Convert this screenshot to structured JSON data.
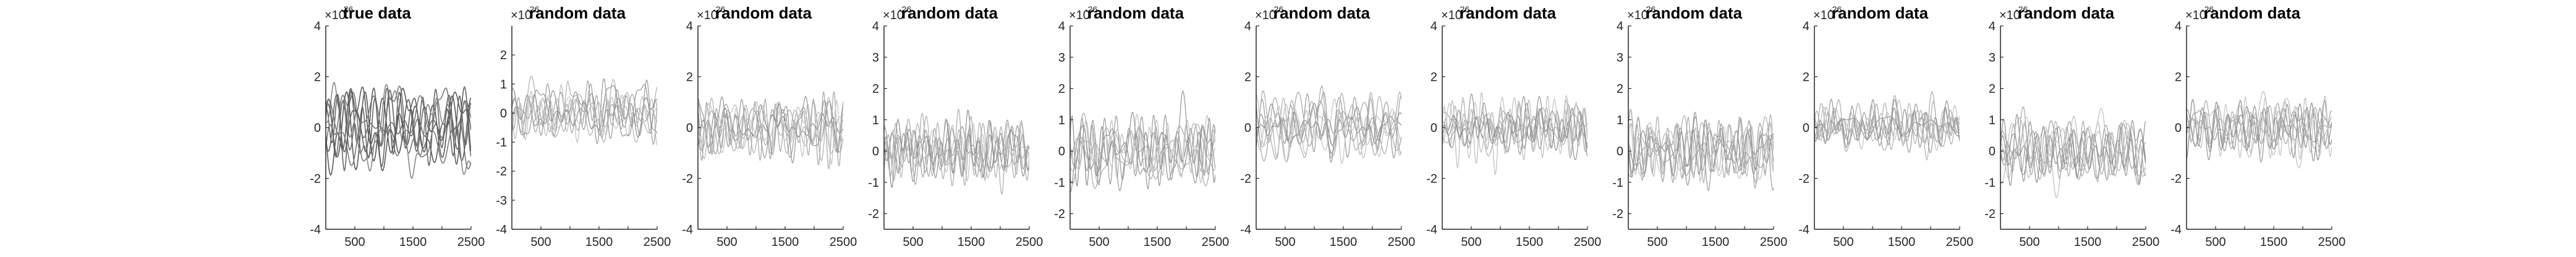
{
  "figure": {
    "panel_count": 11
  },
  "chart_data": [
    {
      "type": "line",
      "title": "true data",
      "exponent_label": "×10",
      "exponent_power": "-26",
      "xlim": [
        0,
        2500
      ],
      "x_ticks": [
        500,
        1000,
        1500,
        2000,
        2500
      ],
      "x_tick_labels": [
        "500",
        "1500",
        "2500"
      ],
      "ylim": [
        -4,
        4
      ],
      "y_ticks": [
        -4,
        -2,
        0,
        2,
        4
      ],
      "y_tick_labels": [
        "-4",
        "-2",
        "0",
        "2",
        "4"
      ],
      "series_count": 8,
      "amplitude": 1.3,
      "series_colors": [
        "#666666",
        "#777777",
        "#555555",
        "#888888",
        "#6e6e6e",
        "#5a5a5a",
        "#7a7a7a",
        "#626262"
      ]
    },
    {
      "type": "line",
      "title": "random data",
      "exponent_label": "×10",
      "exponent_power": "-26",
      "xlim": [
        0,
        2500
      ],
      "x_ticks": [
        500,
        1000,
        1500,
        2000,
        2500
      ],
      "x_tick_labels": [
        "500",
        "1500",
        "2500"
      ],
      "ylim": [
        -4,
        3
      ],
      "y_ticks": [
        -4,
        -3,
        -2,
        -1,
        0,
        1,
        2
      ],
      "y_tick_labels": [
        "-4",
        "-3",
        "-2",
        "-1",
        "0",
        "1",
        "2"
      ],
      "series_count": 8,
      "amplitude": 0.9,
      "series_colors": [
        "#b0b0b0",
        "#a5a5a5",
        "#9a9a9a",
        "#bdbdbd",
        "#8c8c8c",
        "#aaaaaa",
        "#c2c2c2",
        "#959595"
      ]
    },
    {
      "type": "line",
      "title": "random data",
      "exponent_label": "×10",
      "exponent_power": "-26",
      "xlim": [
        0,
        2500
      ],
      "x_ticks": [
        500,
        1000,
        1500,
        2000,
        2500
      ],
      "x_tick_labels": [
        "500",
        "1500",
        "2500"
      ],
      "ylim": [
        -4,
        4
      ],
      "y_ticks": [
        -4,
        -2,
        0,
        2,
        4
      ],
      "y_tick_labels": [
        "-4",
        "-2",
        "0",
        "2",
        "4"
      ],
      "series_count": 8,
      "amplitude": 1.0,
      "series_colors": [
        "#b0b0b0",
        "#a5a5a5",
        "#9a9a9a",
        "#bdbdbd",
        "#8c8c8c",
        "#aaaaaa",
        "#c2c2c2",
        "#959595"
      ]
    },
    {
      "type": "line",
      "title": "random data",
      "exponent_label": "×10",
      "exponent_power": "-26",
      "xlim": [
        0,
        2500
      ],
      "x_ticks": [
        500,
        1000,
        1500,
        2000,
        2500
      ],
      "x_tick_labels": [
        "500",
        "1500",
        "2500"
      ],
      "ylim": [
        -2.5,
        4
      ],
      "y_ticks": [
        -2,
        -1,
        0,
        1,
        2,
        3,
        4
      ],
      "y_tick_labels": [
        "-2",
        "-1",
        "0",
        "1",
        "2",
        "3",
        "4"
      ],
      "series_count": 8,
      "amplitude": 0.9,
      "series_colors": [
        "#b0b0b0",
        "#a5a5a5",
        "#9a9a9a",
        "#bdbdbd",
        "#8c8c8c",
        "#aaaaaa",
        "#c2c2c2",
        "#959595"
      ]
    },
    {
      "type": "line",
      "title": "random data",
      "exponent_label": "×10",
      "exponent_power": "-26",
      "xlim": [
        0,
        2500
      ],
      "x_ticks": [
        500,
        1000,
        1500,
        2000,
        2500
      ],
      "x_tick_labels": [
        "500",
        "1500",
        "2500"
      ],
      "ylim": [
        -2.5,
        4
      ],
      "y_ticks": [
        -2,
        -1,
        0,
        1,
        2,
        3,
        4
      ],
      "y_tick_labels": [
        "-2",
        "-1",
        "0",
        "1",
        "2",
        "3",
        "4"
      ],
      "series_count": 8,
      "amplitude": 0.9,
      "series_colors": [
        "#b0b0b0",
        "#a5a5a5",
        "#9a9a9a",
        "#bdbdbd",
        "#8c8c8c",
        "#aaaaaa",
        "#c2c2c2",
        "#959595"
      ]
    },
    {
      "type": "line",
      "title": "random data",
      "exponent_label": "×10",
      "exponent_power": "-26",
      "xlim": [
        0,
        2500
      ],
      "x_ticks": [
        500,
        1000,
        1500,
        2000,
        2500
      ],
      "x_tick_labels": [
        "500",
        "1500",
        "2500"
      ],
      "ylim": [
        -4,
        4
      ],
      "y_ticks": [
        -4,
        -2,
        0,
        2,
        4
      ],
      "y_tick_labels": [
        "-4",
        "-2",
        "0",
        "2",
        "4"
      ],
      "series_count": 8,
      "amplitude": 1.0,
      "series_colors": [
        "#b0b0b0",
        "#a5a5a5",
        "#9a9a9a",
        "#bdbdbd",
        "#8c8c8c",
        "#aaaaaa",
        "#c2c2c2",
        "#959595"
      ]
    },
    {
      "type": "line",
      "title": "random data",
      "exponent_label": "×10",
      "exponent_power": "-26",
      "xlim": [
        0,
        2500
      ],
      "x_ticks": [
        500,
        1000,
        1500,
        2000,
        2500
      ],
      "x_tick_labels": [
        "500",
        "1500",
        "2500"
      ],
      "ylim": [
        -4,
        4
      ],
      "y_ticks": [
        -4,
        -2,
        0,
        2,
        4
      ],
      "y_tick_labels": [
        "-4",
        "-2",
        "0",
        "2",
        "4"
      ],
      "series_count": 8,
      "amplitude": 1.0,
      "series_colors": [
        "#b0b0b0",
        "#a5a5a5",
        "#9a9a9a",
        "#bdbdbd",
        "#8c8c8c",
        "#aaaaaa",
        "#c2c2c2",
        "#959595"
      ]
    },
    {
      "type": "line",
      "title": "random data",
      "exponent_label": "×10",
      "exponent_power": "-26",
      "xlim": [
        0,
        2500
      ],
      "x_ticks": [
        500,
        1000,
        1500,
        2000,
        2500
      ],
      "x_tick_labels": [
        "500",
        "1500",
        "2500"
      ],
      "ylim": [
        -2.5,
        4
      ],
      "y_ticks": [
        -2,
        -1,
        0,
        1,
        2,
        3,
        4
      ],
      "y_tick_labels": [
        "-2",
        "-1",
        "0",
        "1",
        "2",
        "3",
        "4"
      ],
      "series_count": 8,
      "amplitude": 0.9,
      "series_colors": [
        "#b0b0b0",
        "#a5a5a5",
        "#9a9a9a",
        "#bdbdbd",
        "#8c8c8c",
        "#aaaaaa",
        "#c2c2c2",
        "#959595"
      ]
    },
    {
      "type": "line",
      "title": "random data",
      "exponent_label": "×10",
      "exponent_power": "-26",
      "xlim": [
        0,
        2500
      ],
      "x_ticks": [
        500,
        1000,
        1500,
        2000,
        2500
      ],
      "x_tick_labels": [
        "500",
        "1500",
        "2500"
      ],
      "ylim": [
        -4,
        4
      ],
      "y_ticks": [
        -4,
        -2,
        0,
        2,
        4
      ],
      "y_tick_labels": [
        "-4",
        "-2",
        "0",
        "2",
        "4"
      ],
      "series_count": 8,
      "amplitude": 1.0,
      "series_colors": [
        "#b0b0b0",
        "#a5a5a5",
        "#9a9a9a",
        "#bdbdbd",
        "#8c8c8c",
        "#aaaaaa",
        "#c2c2c2",
        "#959595"
      ]
    },
    {
      "type": "line",
      "title": "random data",
      "exponent_label": "×10",
      "exponent_power": "-26",
      "xlim": [
        0,
        2500
      ],
      "x_ticks": [
        500,
        1000,
        1500,
        2000,
        2500
      ],
      "x_tick_labels": [
        "500",
        "1500",
        "2500"
      ],
      "ylim": [
        -2.5,
        4
      ],
      "y_ticks": [
        -2,
        -1,
        0,
        1,
        2,
        3,
        4
      ],
      "y_tick_labels": [
        "-2",
        "-1",
        "0",
        "1",
        "2",
        "3",
        "4"
      ],
      "series_count": 8,
      "amplitude": 0.9,
      "series_colors": [
        "#b0b0b0",
        "#a5a5a5",
        "#9a9a9a",
        "#bdbdbd",
        "#8c8c8c",
        "#aaaaaa",
        "#c2c2c2",
        "#959595"
      ]
    },
    {
      "type": "line",
      "title": "random data",
      "exponent_label": "×10",
      "exponent_power": "-26",
      "xlim": [
        0,
        2500
      ],
      "x_ticks": [
        500,
        1000,
        1500,
        2000,
        2500
      ],
      "x_tick_labels": [
        "500",
        "1500",
        "2500"
      ],
      "ylim": [
        -4,
        4
      ],
      "y_ticks": [
        -4,
        -2,
        0,
        2,
        4
      ],
      "y_tick_labels": [
        "-4",
        "-2",
        "0",
        "2",
        "4"
      ],
      "series_count": 8,
      "amplitude": 1.0,
      "series_colors": [
        "#b0b0b0",
        "#a5a5a5",
        "#9a9a9a",
        "#bdbdbd",
        "#8c8c8c",
        "#aaaaaa",
        "#c2c2c2",
        "#959595"
      ]
    }
  ]
}
